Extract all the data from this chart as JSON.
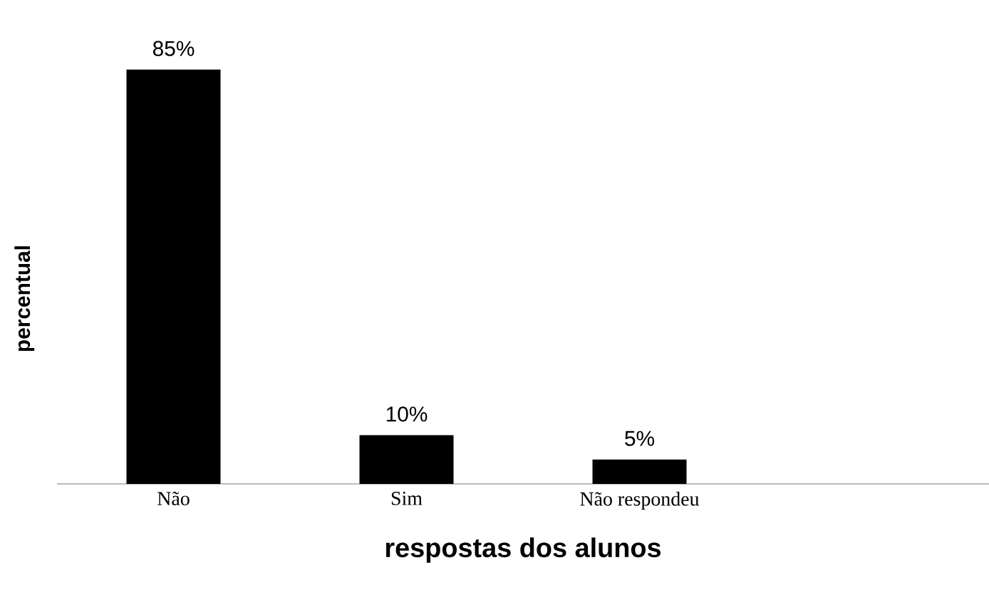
{
  "chart_data": {
    "type": "bar",
    "xlabel": "respostas dos alunos",
    "ylabel": "percentual",
    "categories": [
      "Não",
      "Sim",
      "Não respondeu",
      null
    ],
    "values": [
      85,
      10,
      5,
      null
    ],
    "value_labels": [
      "85%",
      "10%",
      "5%",
      null
    ],
    "color": "#000000"
  }
}
